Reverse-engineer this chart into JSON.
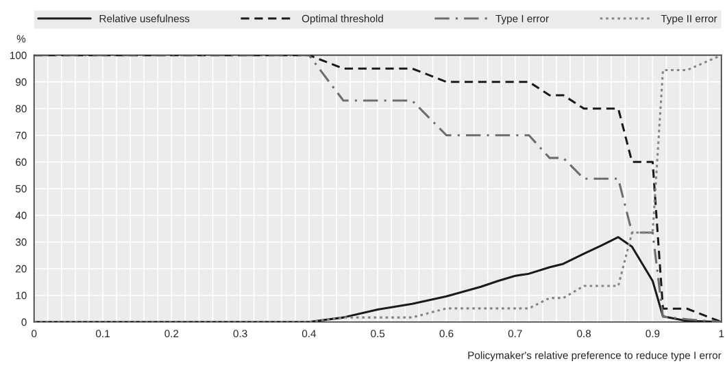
{
  "chart_data": {
    "type": "line",
    "ylabel": "%",
    "xlabel": "Policymaker's relative preference to reduce type I error",
    "x": [
      0,
      0.4,
      0.45,
      0.5,
      0.55,
      0.6,
      0.65,
      0.675,
      0.7,
      0.72,
      0.75,
      0.77,
      0.8,
      0.825,
      0.85,
      0.87,
      0.9,
      0.915,
      0.95,
      1
    ],
    "series": [
      {
        "name": "Relative usefulness",
        "color": "#1a1a1a",
        "line_style": "solid",
        "values": [
          0,
          0,
          1.7,
          4.7,
          6.8,
          9.6,
          13.2,
          15.4,
          17.3,
          18.1,
          20.5,
          21.8,
          25.6,
          28.6,
          31.8,
          28.2,
          15.4,
          2.1,
          0.4,
          0
        ]
      },
      {
        "name": "Optimal threshold",
        "color": "#1a1a1a",
        "line_style": "dashed",
        "values": [
          100,
          100,
          95,
          95,
          95,
          90,
          90,
          90,
          90,
          90,
          85,
          85,
          80,
          80,
          80,
          60,
          60,
          5,
          5,
          0
        ]
      },
      {
        "name": "Type I error",
        "color": "#6d6d6d",
        "line_style": "dashdot",
        "values": [
          100,
          100,
          83,
          83,
          83,
          70,
          70,
          70,
          70,
          70,
          61.5,
          61.5,
          53.7,
          53.7,
          53.7,
          33.5,
          33.5,
          2,
          1,
          0
        ]
      },
      {
        "name": "Type II error",
        "color": "#858585",
        "line_style": "dotted",
        "values": [
          0,
          0,
          1.7,
          1.7,
          1.7,
          5.1,
          5.1,
          5.1,
          5.1,
          5.1,
          9,
          9,
          13.5,
          13.5,
          13.5,
          33.5,
          33.5,
          94.4,
          94.4,
          100
        ]
      }
    ],
    "xlim": [
      0,
      1
    ],
    "ylim": [
      0,
      100
    ],
    "xticks": [
      0,
      {
        "value": 0.02,
        "label": null
      },
      {
        "value": 0.04,
        "label": null
      },
      {
        "value": 0.06,
        "label": null
      },
      {
        "value": 0.08,
        "label": null
      },
      0.1,
      {
        "value": 0.12,
        "label": null
      },
      {
        "value": 0.14,
        "label": null
      },
      {
        "value": 0.16,
        "label": null
      },
      {
        "value": 0.18,
        "label": null
      },
      0.2,
      {
        "value": 0.22,
        "label": null
      },
      {
        "value": 0.24,
        "label": null
      },
      {
        "value": 0.26,
        "label": null
      },
      {
        "value": 0.28,
        "label": null
      },
      0.3,
      {
        "value": 0.32,
        "label": null
      },
      {
        "value": 0.34,
        "label": null
      },
      {
        "value": 0.36,
        "label": null
      },
      {
        "value": 0.38,
        "label": null
      },
      0.4,
      {
        "value": 0.42,
        "label": null
      },
      {
        "value": 0.44,
        "label": null
      },
      {
        "value": 0.46,
        "label": null
      },
      {
        "value": 0.48,
        "label": null
      },
      0.5,
      {
        "value": 0.52,
        "label": null
      },
      {
        "value": 0.54,
        "label": null
      },
      {
        "value": 0.56,
        "label": null
      },
      {
        "value": 0.58,
        "label": null
      },
      0.6,
      {
        "value": 0.62,
        "label": null
      },
      {
        "value": 0.64,
        "label": null
      },
      {
        "value": 0.66,
        "label": null
      },
      {
        "value": 0.68,
        "label": null
      },
      0.7,
      {
        "value": 0.72,
        "label": null
      },
      {
        "value": 0.74,
        "label": null
      },
      {
        "value": 0.76,
        "label": null
      },
      {
        "value": 0.78,
        "label": null
      },
      0.8,
      {
        "value": 0.82,
        "label": null
      },
      {
        "value": 0.84,
        "label": null
      },
      {
        "value": 0.86,
        "label": null
      },
      {
        "value": 0.88,
        "label": null
      },
      0.9,
      {
        "value": 0.92,
        "label": null
      },
      {
        "value": 0.94,
        "label": null
      },
      {
        "value": 0.96,
        "label": null
      },
      {
        "value": 0.98,
        "label": null
      },
      1
    ],
    "yticks": [
      0,
      10,
      20,
      30,
      40,
      50,
      60,
      70,
      80,
      90,
      100
    ],
    "grid": true,
    "legend": "top",
    "marker": "none"
  }
}
